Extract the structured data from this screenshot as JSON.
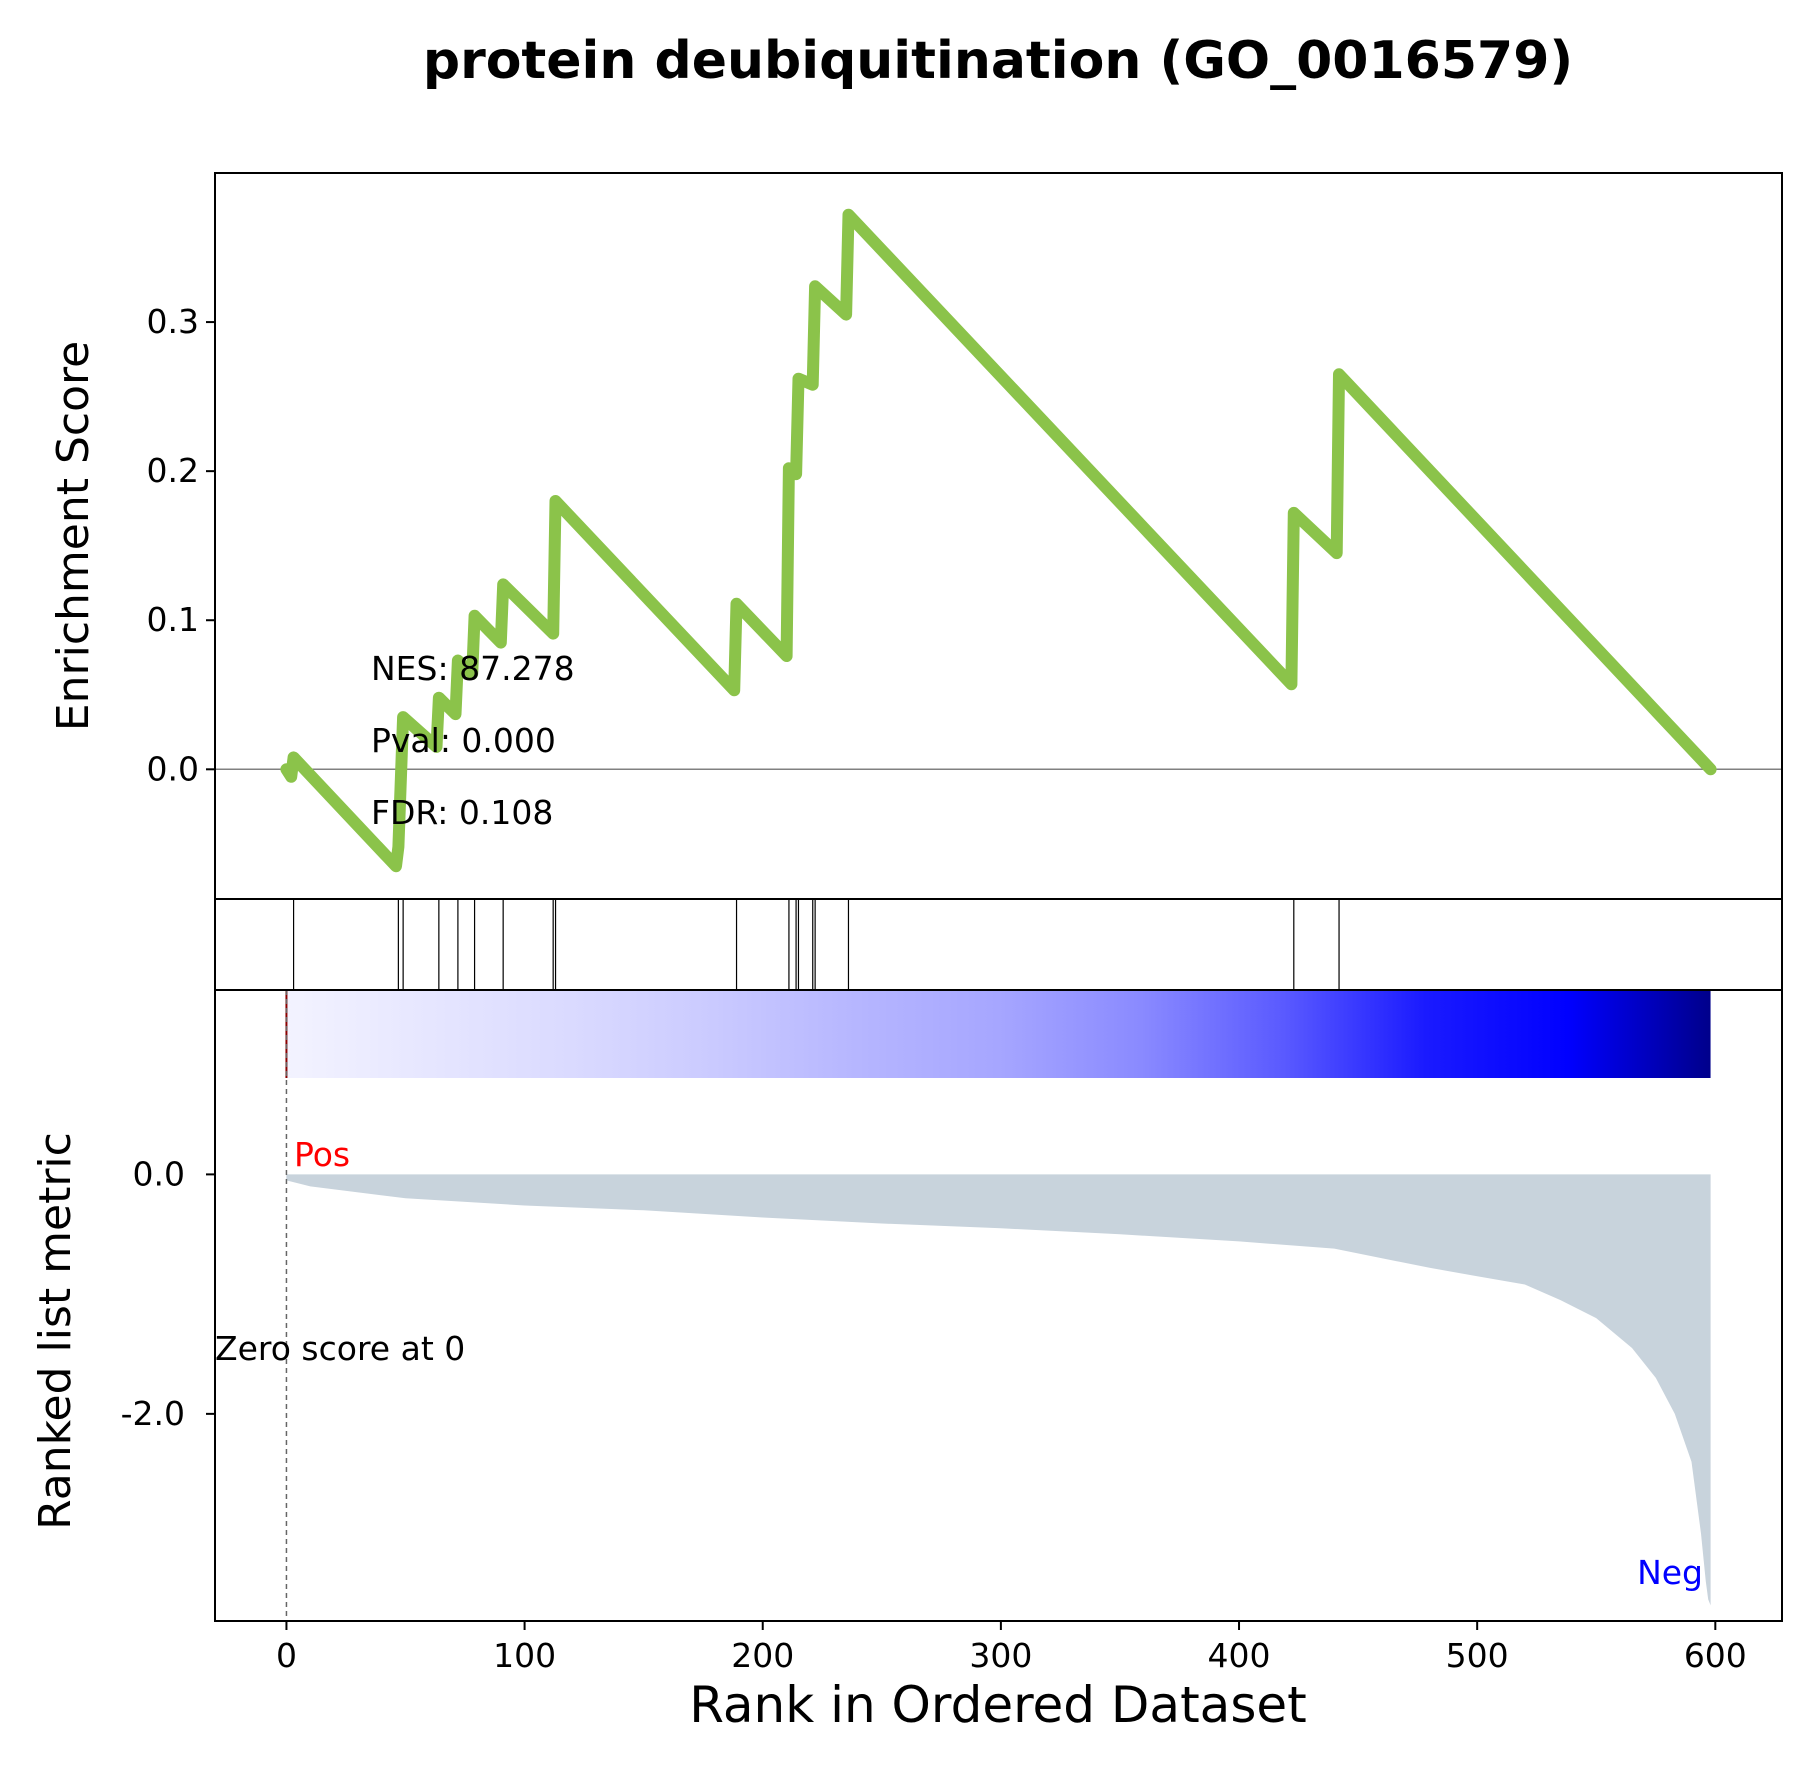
{
  "chart_data": {
    "type": "line",
    "title": "protein deubiquitination (GO_0016579)",
    "xlabel": "Rank in Ordered Dataset",
    "xlim": [
      -30,
      628
    ],
    "x_ticks": [
      "0",
      "100",
      "200",
      "300",
      "400",
      "500",
      "600"
    ],
    "enrichment": {
      "ylabel": "Enrichment Score",
      "ylim": [
        -0.087,
        0.4
      ],
      "y_ticks": [
        "0.0",
        "0.1",
        "0.2",
        "0.3"
      ],
      "line_color": "#8bc34a",
      "zero_line_color": "#808080",
      "points": [
        [
          0,
          0.0
        ],
        [
          2,
          -0.005
        ],
        [
          3,
          0.008
        ],
        [
          46,
          -0.065
        ],
        [
          47,
          -0.052
        ],
        [
          49,
          0.035
        ],
        [
          63,
          0.015
        ],
        [
          64,
          0.048
        ],
        [
          71,
          0.037
        ],
        [
          72,
          0.073
        ],
        [
          78,
          0.064
        ],
        [
          79,
          0.103
        ],
        [
          90,
          0.085
        ],
        [
          91,
          0.124
        ],
        [
          112,
          0.091
        ],
        [
          113,
          0.18
        ],
        [
          188,
          0.053
        ],
        [
          189,
          0.111
        ],
        [
          210,
          0.076
        ],
        [
          211,
          0.202
        ],
        [
          214,
          0.198
        ],
        [
          215,
          0.262
        ],
        [
          221,
          0.258
        ],
        [
          222,
          0.324
        ],
        [
          235,
          0.305
        ],
        [
          236,
          0.372
        ],
        [
          422,
          0.057
        ],
        [
          423,
          0.172
        ],
        [
          441,
          0.145
        ],
        [
          442,
          0.265
        ],
        [
          598,
          0.0
        ]
      ],
      "annotations": [
        "NES: 87.278",
        "Pval: 0.000",
        "FDR: 0.108"
      ]
    },
    "hits": {
      "color": "#000000",
      "positions": [
        3,
        47,
        49,
        64,
        72,
        79,
        91,
        112,
        113,
        189,
        211,
        214,
        215,
        221,
        222,
        236,
        423,
        442
      ]
    },
    "ranked_metric": {
      "ylabel": "Ranked list metric",
      "ylim": [
        -3.73,
        1.54
      ],
      "y_ticks": [
        "0.0",
        "-2.0"
      ],
      "fill_color": "#c8d3dc",
      "pos_label": "Pos",
      "pos_label_color": "#ff0000",
      "neg_label": "Neg",
      "neg_label_color": "#0000ff",
      "zero_score_label": "Zero score at 0",
      "zero_score_rank": 0,
      "heatmap_colors": [
        "#f3f3ff",
        "#e6e6ff",
        "#dadaff",
        "#cacaff",
        "#b6b6ff",
        "#a6a6ff",
        "#8a8aff",
        "#5a5aff",
        "#1a1aff",
        "#0000ff",
        "#00008b"
      ],
      "profile": [
        [
          0,
          -0.05
        ],
        [
          10,
          -0.1
        ],
        [
          50,
          -0.2
        ],
        [
          100,
          -0.26
        ],
        [
          150,
          -0.3
        ],
        [
          200,
          -0.36
        ],
        [
          250,
          -0.41
        ],
        [
          300,
          -0.45
        ],
        [
          350,
          -0.5
        ],
        [
          400,
          -0.56
        ],
        [
          440,
          -0.62
        ],
        [
          460,
          -0.7
        ],
        [
          480,
          -0.78
        ],
        [
          500,
          -0.85
        ],
        [
          520,
          -0.92
        ],
        [
          535,
          -1.05
        ],
        [
          550,
          -1.2
        ],
        [
          565,
          -1.45
        ],
        [
          575,
          -1.7
        ],
        [
          583,
          -2.0
        ],
        [
          590,
          -2.4
        ],
        [
          594,
          -3.0
        ],
        [
          596,
          -3.4
        ],
        [
          597,
          -3.55
        ],
        [
          598,
          -3.6
        ]
      ]
    }
  }
}
